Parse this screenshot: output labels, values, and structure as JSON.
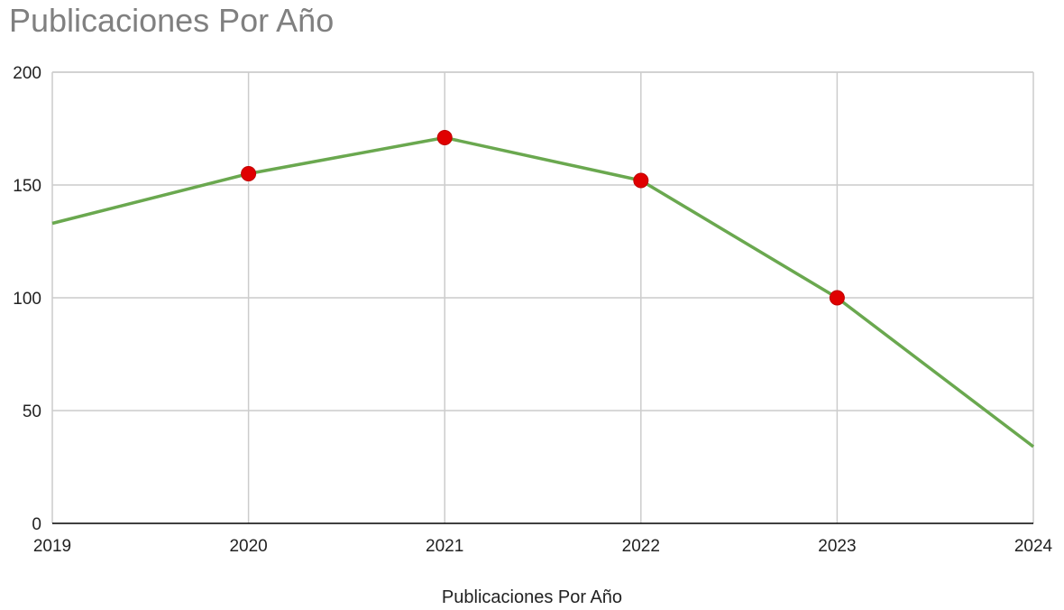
{
  "chart_data": {
    "type": "line",
    "title": "Publicaciones Por Año",
    "xlabel": "Publicaciones Por Año",
    "ylabel": "",
    "x": [
      "2019",
      "2020",
      "2021",
      "2022",
      "2023",
      "2024"
    ],
    "xlim": [
      2019,
      2024
    ],
    "ylim": [
      0,
      200
    ],
    "yticks": [
      0,
      50,
      100,
      150,
      200
    ],
    "grid": true,
    "legend": "none",
    "series": [
      {
        "values": [
          133,
          155,
          171,
          152,
          100,
          34
        ],
        "markers": [
          "2020",
          "2021",
          "2022",
          "2023"
        ]
      }
    ],
    "colors": {
      "line": "#6aa84f",
      "marker": "#e00000",
      "marker_stroke": "#c00000",
      "grid": "#cccccc",
      "axis": "#000000",
      "title": "#808080"
    }
  }
}
